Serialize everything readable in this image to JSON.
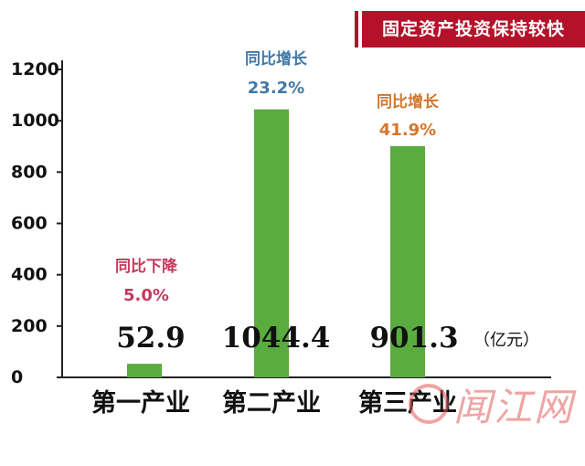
{
  "title": "固定资产投资保持较快",
  "watermark": "闻江网",
  "unit_label": "（亿元）",
  "colors": {
    "bar": "#5aab40",
    "title_bg": "#b3122a",
    "decline": "#c33a5c",
    "growth_secondary": "#3f78a8",
    "growth_tertiary": "#d2762e"
  },
  "chart_data": {
    "type": "bar",
    "categories": [
      "第一产业",
      "第二产业",
      "第三产业"
    ],
    "values": [
      52.9,
      1044.4,
      901.3
    ],
    "value_labels": [
      "52.9",
      "1044.4",
      "901.3"
    ],
    "annotations": [
      {
        "label": "同比下降",
        "value": "5.0%",
        "color": "#c33a5c"
      },
      {
        "label": "同比增长",
        "value": "23.2%",
        "color": "#3f78a8"
      },
      {
        "label": "同比增长",
        "value": "41.9%",
        "color": "#d2762e"
      }
    ],
    "yticks": [
      0,
      200,
      400,
      600,
      800,
      1000,
      1200
    ],
    "ylim": [
      0,
      1200
    ],
    "grid": false
  }
}
